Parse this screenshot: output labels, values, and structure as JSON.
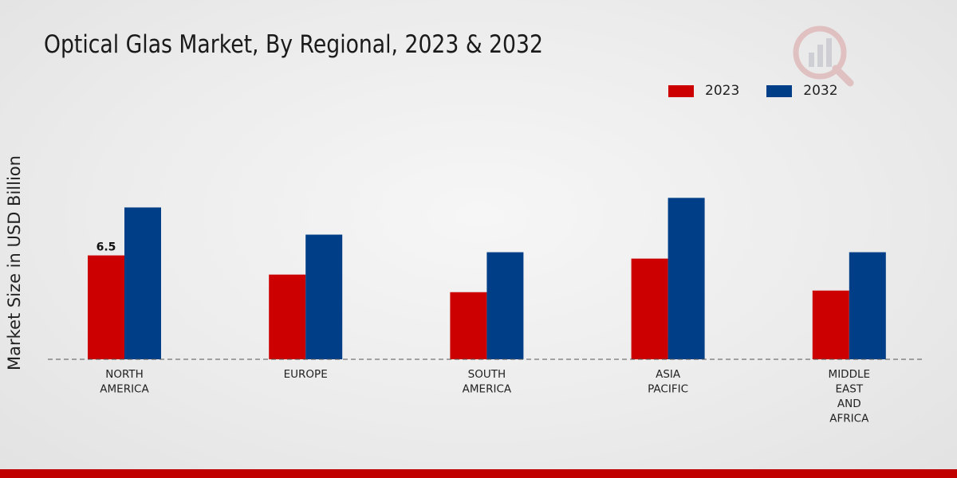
{
  "chart_data": {
    "type": "bar",
    "title": "Optical Glas Market, By Regional, 2023 & 2032",
    "xlabel": "",
    "ylabel": "Market Size in USD Billion",
    "categories": [
      [
        "NORTH",
        "AMERICA"
      ],
      [
        "EUROPE"
      ],
      [
        "SOUTH",
        "AMERICA"
      ],
      [
        "ASIA",
        "PACIFIC"
      ],
      [
        "MIDDLE",
        "EAST",
        "AND",
        "AFRICA"
      ]
    ],
    "series": [
      {
        "name": "2023",
        "color": "#cc0000",
        "values": [
          6.5,
          5.3,
          4.2,
          6.3,
          4.3
        ]
      },
      {
        "name": "2032",
        "color": "#003f87",
        "values": [
          9.5,
          7.8,
          6.7,
          10.1,
          6.7
        ]
      }
    ],
    "data_labels": [
      {
        "series": 0,
        "index": 0,
        "text": "6.5"
      }
    ],
    "ylim": [
      0,
      16
    ],
    "grid": false,
    "legend_position": "top-right"
  },
  "legend": {
    "items": [
      {
        "label": "2023",
        "color": "#cc0000"
      },
      {
        "label": "2032",
        "color": "#003f87"
      }
    ]
  },
  "icons": {
    "logo": "brand-logo-icon"
  }
}
